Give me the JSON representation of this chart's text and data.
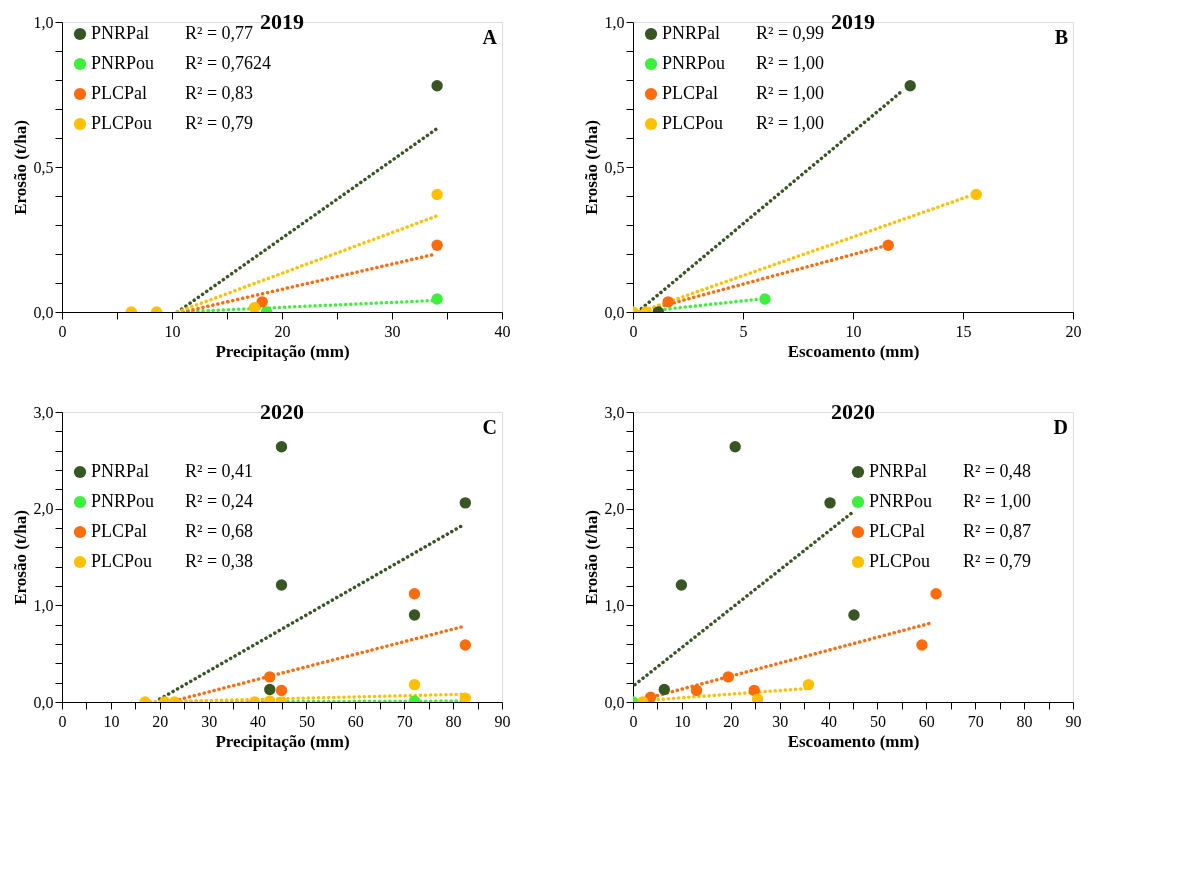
{
  "chart_data": [
    {
      "type": "scatter",
      "title": "2019",
      "xlabel": "Precipitação (mm)",
      "ylabel": "Erosão (t/ha)",
      "legend": "top left",
      "marker": "circle",
      "grid": false,
      "annotations": [
        "R² = 0,77",
        "R² = 0,7624",
        "R² = 0,83",
        "R² = 0,79",
        "A"
      ],
      "xlim": [
        0,
        40
      ],
      "xticks": [
        0,
        {
          "value": 5,
          "label": null
        },
        10,
        {
          "value": 15,
          "label": null
        },
        20,
        {
          "value": 25,
          "label": null
        },
        30,
        {
          "value": 35,
          "label": null
        },
        40
      ],
      "ylim": [
        0,
        1
      ],
      "yticks": [
        {
          "value": 0,
          "label": "0,0"
        },
        {
          "value": 0.1,
          "label": null
        },
        {
          "value": 0.2,
          "label": null
        },
        {
          "value": 0.3,
          "label": null
        },
        {
          "value": 0.4,
          "label": null
        },
        {
          "value": 0.5,
          "label": "0,5"
        },
        {
          "value": 0.6,
          "label": null
        },
        {
          "value": 0.7,
          "label": null
        },
        {
          "value": 0.8,
          "label": null
        },
        {
          "value": 0.9,
          "label": null
        },
        {
          "value": 1,
          "label": "1,0"
        }
      ],
      "series": [
        {
          "type": "line",
          "marker": "none",
          "line_style": "dotted",
          "color": "#375623",
          "x": [
            10.5,
            34
          ],
          "values": [
            0,
            0.63
          ]
        },
        {
          "type": "line",
          "marker": "none",
          "line_style": "dotted",
          "color": "#3cf03c",
          "x": [
            10.5,
            34
          ],
          "values": [
            0,
            0.04
          ]
        },
        {
          "type": "line",
          "marker": "none",
          "line_style": "dotted",
          "color": "#fc6c0c",
          "x": [
            11,
            34
          ],
          "values": [
            0,
            0.2
          ]
        },
        {
          "type": "line",
          "marker": "none",
          "line_style": "dotted",
          "color": "#ffc000",
          "x": [
            10.5,
            34
          ],
          "values": [
            0,
            0.33
          ]
        },
        {
          "name": "PNRPal",
          "color": "#375623",
          "x": [
            34.1
          ],
          "values": [
            0.78
          ]
        },
        {
          "name": "PNRPou",
          "color": "#3cf03c",
          "x": [
            18.6,
            34.1
          ],
          "values": [
            0,
            0.045
          ]
        },
        {
          "name": "PLCPal",
          "color": "#fc6c0c",
          "x": [
            18.2,
            34.1
          ],
          "values": [
            0.035,
            0.23
          ]
        },
        {
          "name": "PLCPou",
          "color": "#ffc000",
          "x": [
            6.3,
            8.6,
            17.5,
            34.1
          ],
          "values": [
            0,
            0,
            0.015,
            0.405
          ]
        }
      ]
    },
    {
      "type": "scatter",
      "title": "2019",
      "xlabel": "Escoamento (mm)",
      "ylabel": "Erosão (t/ha)",
      "legend": "top left",
      "marker": "circle",
      "grid": false,
      "annotations": [
        "R² = 0,99",
        "R² = 1,00",
        "R² = 1,00",
        "R² = 1,00",
        "B"
      ],
      "xlim": [
        0,
        20
      ],
      "xticks": [
        0,
        5,
        10,
        15,
        20
      ],
      "ylim": [
        0,
        1
      ],
      "yticks": [
        {
          "value": 0,
          "label": "0,0"
        },
        {
          "value": 0.1,
          "label": null
        },
        {
          "value": 0.2,
          "label": null
        },
        {
          "value": 0.3,
          "label": null
        },
        {
          "value": 0.4,
          "label": null
        },
        {
          "value": 0.5,
          "label": "0,5"
        },
        {
          "value": 0.6,
          "label": null
        },
        {
          "value": 0.7,
          "label": null
        },
        {
          "value": 0.8,
          "label": null
        },
        {
          "value": 0.9,
          "label": null
        },
        {
          "value": 1,
          "label": "1,0"
        }
      ],
      "series": [
        {
          "type": "line",
          "marker": "none",
          "line_style": "dotted",
          "color": "#375623",
          "x": [
            0.2,
            12.2
          ],
          "values": [
            0,
            0.76
          ]
        },
        {
          "type": "line",
          "marker": "none",
          "line_style": "dotted",
          "color": "#3cf03c",
          "x": [
            0.3,
            5.8
          ],
          "values": [
            0,
            0.045
          ]
        },
        {
          "type": "line",
          "marker": "none",
          "line_style": "dotted",
          "color": "#fc6c0c",
          "x": [
            0.3,
            11.3
          ],
          "values": [
            0,
            0.225
          ]
        },
        {
          "type": "line",
          "marker": "none",
          "line_style": "dotted",
          "color": "#ffc000",
          "x": [
            0.3,
            15.3
          ],
          "values": [
            0,
            0.4
          ]
        },
        {
          "name": "PNRPal",
          "color": "#375623",
          "x": [
            1.15,
            12.6
          ],
          "values": [
            0,
            0.78
          ]
        },
        {
          "name": "PNRPou",
          "color": "#3cf03c",
          "x": [
            6.0
          ],
          "values": [
            0.045
          ]
        },
        {
          "name": "PLCPal",
          "color": "#fc6c0c",
          "x": [
            1.6,
            11.6
          ],
          "values": [
            0.035,
            0.23
          ]
        },
        {
          "name": "PLCPou",
          "color": "#ffc000",
          "x": [
            0,
            0.6,
            15.6
          ],
          "values": [
            0,
            0,
            0.405
          ]
        }
      ]
    },
    {
      "type": "scatter",
      "title": "2020",
      "xlabel": "Precipitação (mm)",
      "ylabel": "Erosão (t/ha)",
      "legend": "left",
      "marker": "circle",
      "grid": false,
      "annotations": [
        "R² = 0,41",
        "R² = 0,24",
        "R² = 0,68",
        "R² = 0,38",
        "C"
      ],
      "xlim": [
        0,
        90
      ],
      "xticks": [
        0,
        {
          "value": 5,
          "label": null
        },
        10,
        {
          "value": 15,
          "label": null
        },
        20,
        {
          "value": 25,
          "label": null
        },
        30,
        {
          "value": 35,
          "label": null
        },
        40,
        {
          "value": 45,
          "label": null
        },
        50,
        {
          "value": 55,
          "label": null
        },
        60,
        {
          "value": 65,
          "label": null
        },
        70,
        {
          "value": 75,
          "label": null
        },
        80,
        {
          "value": 85,
          "label": null
        },
        90
      ],
      "ylim": [
        0,
        3
      ],
      "yticks": [
        {
          "value": 0,
          "label": "0,0"
        },
        {
          "value": 0.2,
          "label": null
        },
        {
          "value": 0.4,
          "label": null
        },
        {
          "value": 0.6,
          "label": null
        },
        {
          "value": 0.8,
          "label": null
        },
        {
          "value": 1,
          "label": "1,0"
        },
        {
          "value": 1.2,
          "label": null
        },
        {
          "value": 1.4,
          "label": null
        },
        {
          "value": 1.6,
          "label": null
        },
        {
          "value": 1.8,
          "label": null
        },
        {
          "value": 2,
          "label": "2,0"
        },
        {
          "value": 2.2,
          "label": null
        },
        {
          "value": 2.4,
          "label": null
        },
        {
          "value": 2.6,
          "label": null
        },
        {
          "value": 2.8,
          "label": null
        },
        {
          "value": 3,
          "label": "3,0"
        }
      ],
      "series": [
        {
          "type": "line",
          "marker": "none",
          "line_style": "dotted",
          "color": "#375623",
          "x": [
            20,
            81.7
          ],
          "values": [
            0.03,
            1.82
          ]
        },
        {
          "type": "line",
          "marker": "none",
          "line_style": "dotted",
          "color": "#3cf03c",
          "x": [
            17,
            82
          ],
          "values": [
            0,
            0.01
          ]
        },
        {
          "type": "line",
          "marker": "none",
          "line_style": "dotted",
          "color": "#fc6c0c",
          "x": [
            22,
            82
          ],
          "values": [
            0,
            0.78
          ]
        },
        {
          "type": "line",
          "marker": "none",
          "line_style": "dotted",
          "color": "#ffc000",
          "x": [
            17,
            82
          ],
          "values": [
            0,
            0.08
          ]
        },
        {
          "name": "PNRPal",
          "color": "#375623",
          "x": [
            42.5,
            44.9,
            44.9,
            72.1,
            82.5
          ],
          "values": [
            0.13,
            2.64,
            1.21,
            0.9,
            2.06
          ]
        },
        {
          "name": "PNRPou",
          "color": "#3cf03c",
          "x": [
            72.1
          ],
          "values": [
            0.01
          ]
        },
        {
          "name": "PLCPal",
          "color": "#fc6c0c",
          "x": [
            42.5,
            44.9,
            72.1,
            82.5
          ],
          "values": [
            0.26,
            0.12,
            1.12,
            0.59
          ]
        },
        {
          "name": "PLCPou",
          "color": "#ffc000",
          "x": [
            17,
            21,
            23,
            39.4,
            42.5,
            44.9,
            72.1,
            82.5
          ],
          "values": [
            0,
            0,
            0,
            0,
            0.01,
            0,
            0.18,
            0.04
          ]
        }
      ]
    },
    {
      "type": "scatter",
      "title": "2020",
      "xlabel": "Escoamento (mm)",
      "ylabel": "Erosão (t/ha)",
      "legend": "top right",
      "marker": "circle",
      "grid": false,
      "annotations": [
        "R² = 0,48",
        "R² = 1,00",
        "R² = 0,87",
        "R² = 0,79",
        "D"
      ],
      "xlim": [
        0,
        90
      ],
      "xticks": [
        0,
        {
          "value": 5,
          "label": null
        },
        10,
        {
          "value": 15,
          "label": null
        },
        20,
        {
          "value": 25,
          "label": null
        },
        30,
        {
          "value": 35,
          "label": null
        },
        40,
        {
          "value": 45,
          "label": null
        },
        50,
        {
          "value": 55,
          "label": null
        },
        60,
        {
          "value": 65,
          "label": null
        },
        70,
        {
          "value": 75,
          "label": null
        },
        80,
        {
          "value": 85,
          "label": null
        },
        90
      ],
      "ylim": [
        0,
        3
      ],
      "yticks": [
        {
          "value": 0,
          "label": "0,0"
        },
        {
          "value": 0.2,
          "label": null
        },
        {
          "value": 0.4,
          "label": null
        },
        {
          "value": 0.6,
          "label": null
        },
        {
          "value": 0.8,
          "label": null
        },
        {
          "value": 1,
          "label": "1,0"
        },
        {
          "value": 1.2,
          "label": null
        },
        {
          "value": 1.4,
          "label": null
        },
        {
          "value": 1.6,
          "label": null
        },
        {
          "value": 1.8,
          "label": null
        },
        {
          "value": 2,
          "label": "2,0"
        },
        {
          "value": 2.2,
          "label": null
        },
        {
          "value": 2.4,
          "label": null
        },
        {
          "value": 2.6,
          "label": null
        },
        {
          "value": 2.8,
          "label": null
        },
        {
          "value": 3,
          "label": "3,0"
        }
      ],
      "series": [
        {
          "type": "line",
          "marker": "none",
          "line_style": "dotted",
          "color": "#375623",
          "x": [
            0.4,
            44.6
          ],
          "values": [
            0.18,
            1.95
          ]
        },
        {
          "type": "line",
          "marker": "none",
          "line_style": "dotted",
          "color": "#fc6c0c",
          "x": [
            3,
            61.2
          ],
          "values": [
            0.04,
            0.82
          ]
        },
        {
          "type": "line",
          "marker": "none",
          "line_style": "dotted",
          "color": "#ffc000",
          "x": [
            1,
            35.5
          ],
          "values": [
            0.01,
            0.14
          ]
        },
        {
          "name": "PNRPal",
          "color": "#375623",
          "x": [
            6.4,
            9.9,
            20.9,
            40.3,
            45.2
          ],
          "values": [
            0.13,
            1.21,
            2.64,
            2.06,
            0.9
          ]
        },
        {
          "name": "PNRPou",
          "color": "#3cf03c",
          "x": [
            0
          ],
          "values": [
            0
          ]
        },
        {
          "name": "PLCPal",
          "color": "#fc6c0c",
          "x": [
            3.6,
            13,
            19.5,
            24.8,
            59.1,
            62
          ],
          "values": [
            0.05,
            0.12,
            0.26,
            0.12,
            0.59,
            1.12
          ]
        },
        {
          "name": "PLCPou",
          "color": "#ffc000",
          "x": [
            2,
            25.5,
            35.9
          ],
          "values": [
            0,
            0.03,
            0.18
          ]
        }
      ]
    }
  ]
}
